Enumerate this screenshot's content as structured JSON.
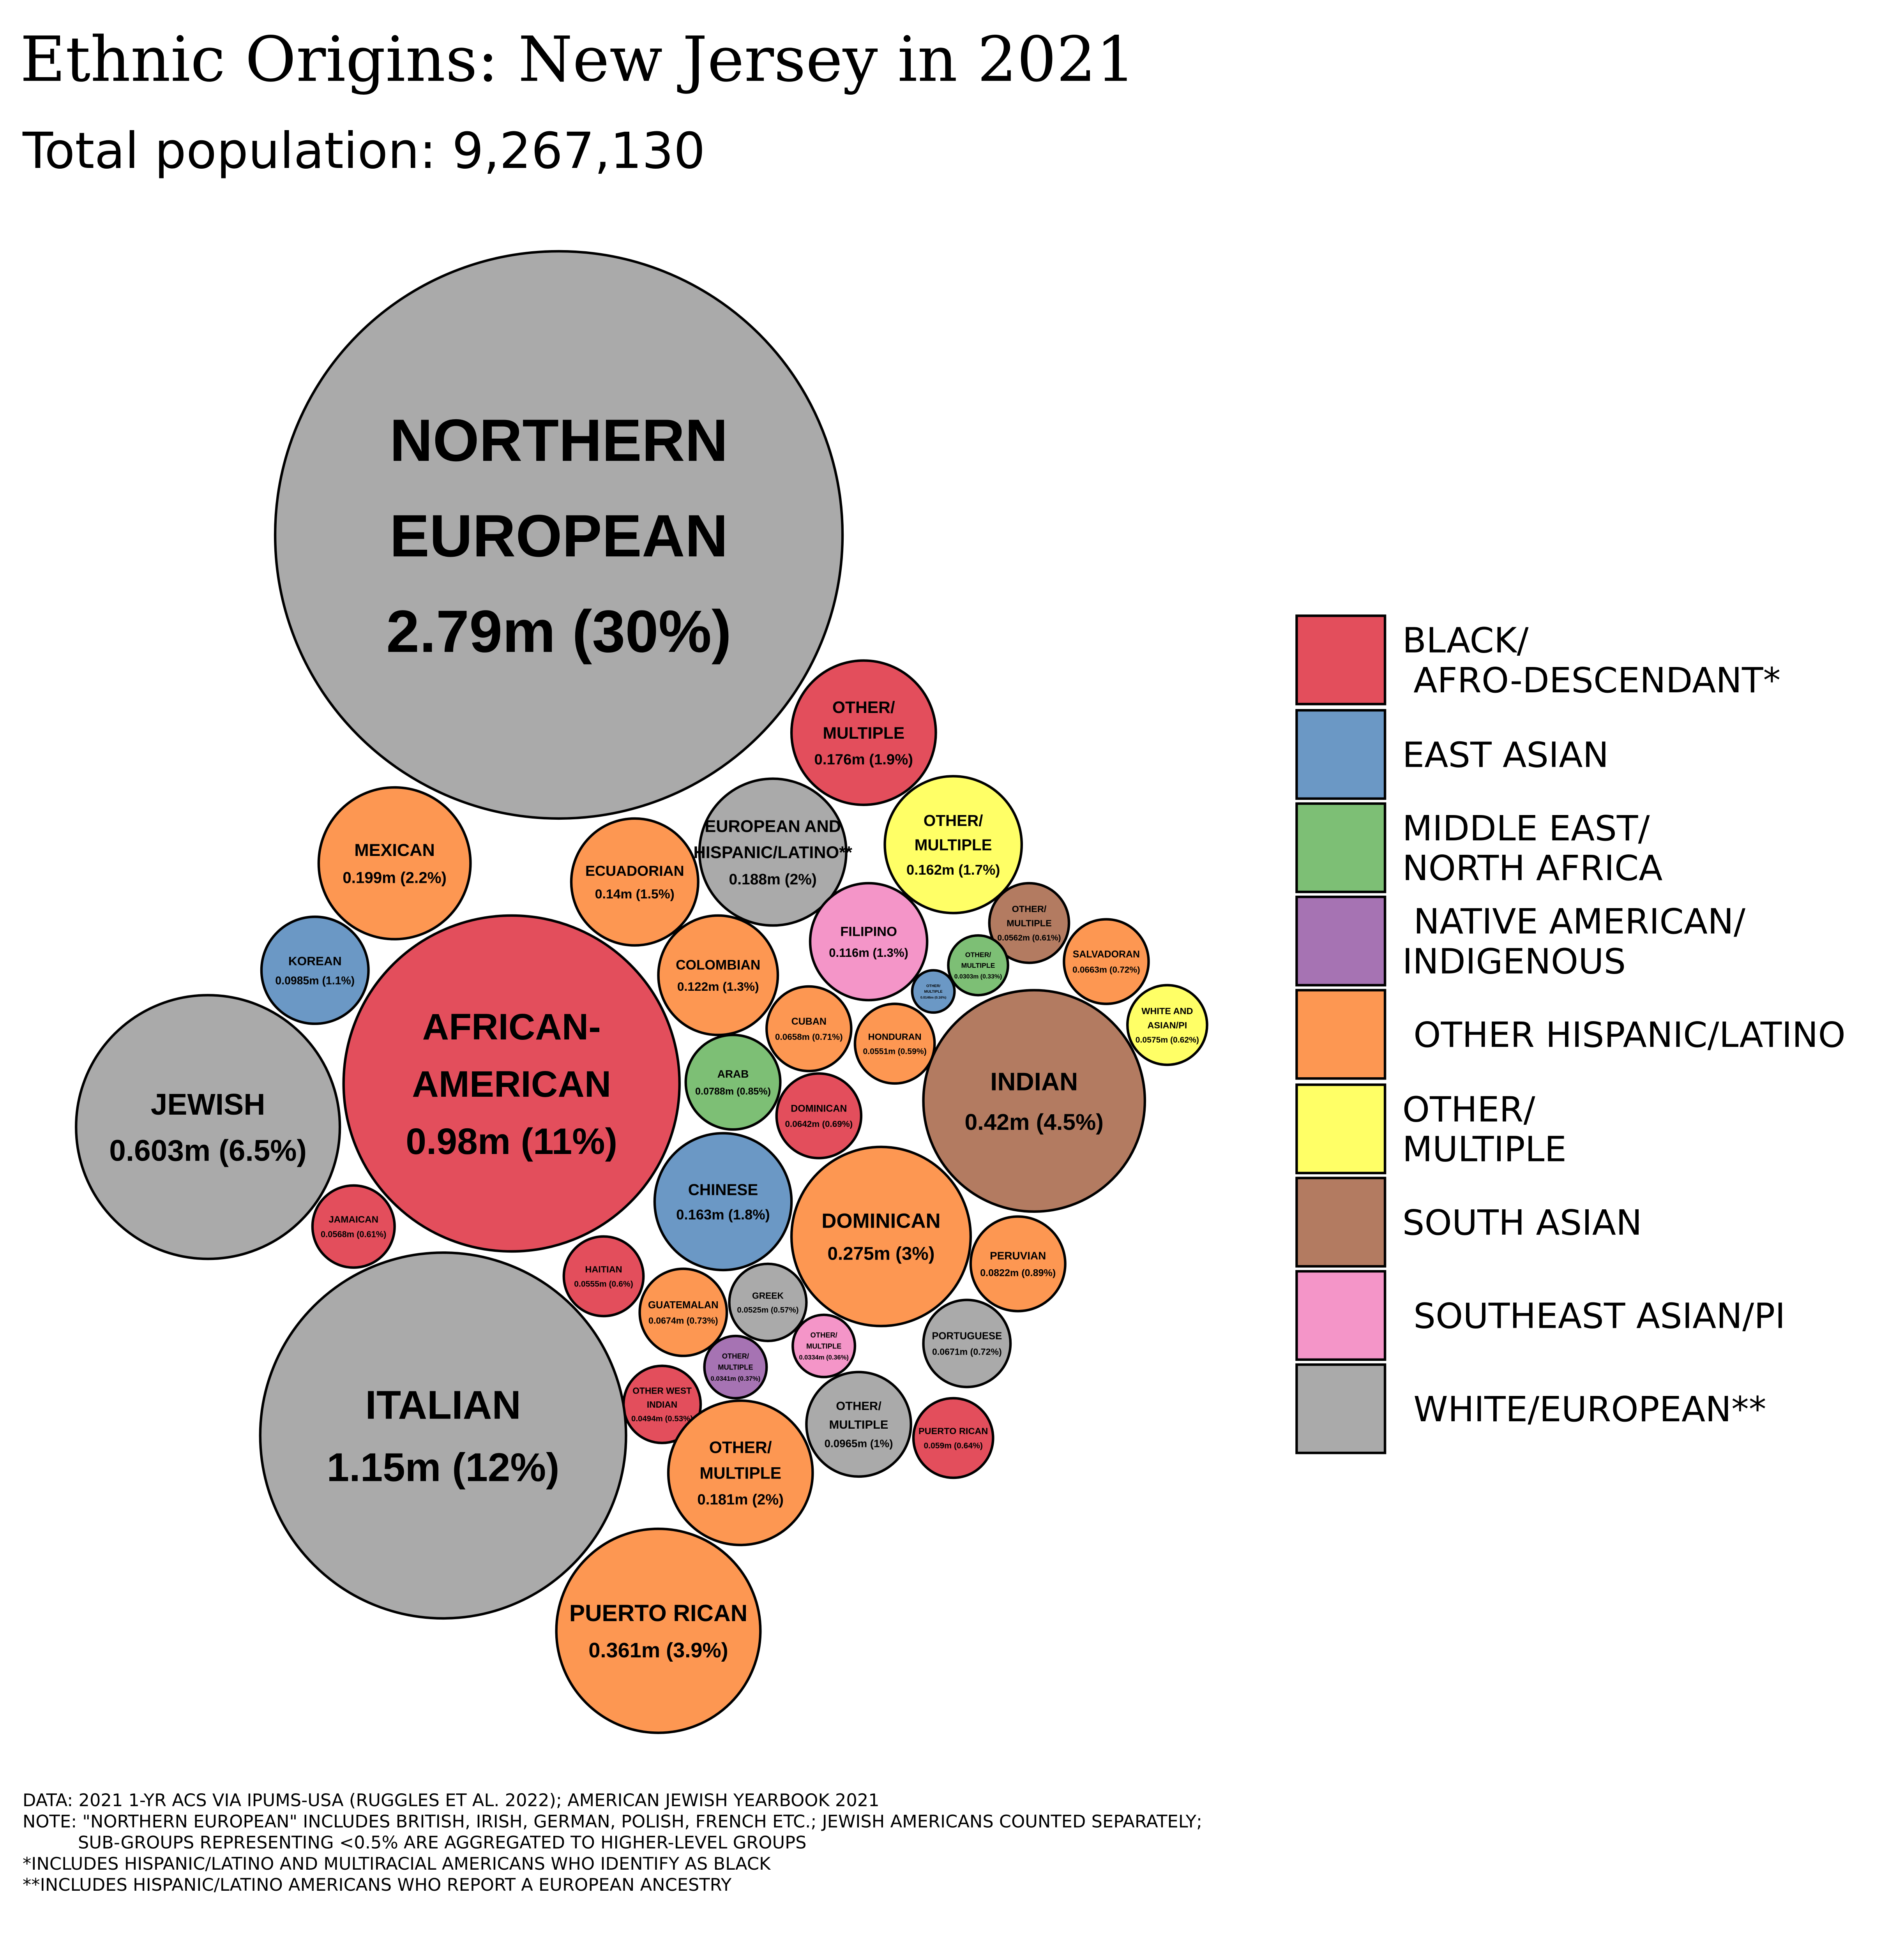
{
  "chart_data": {
    "type": "bubble",
    "title": "Ethnic Origins: New Jersey in 2021",
    "subtitle": "Total population: 9,267,130",
    "groups": [
      {
        "key": "black",
        "label": [
          "BLACK/",
          " AFRO-DESCENDANT*"
        ],
        "color": "#e34e5c"
      },
      {
        "key": "eastasian",
        "label": [
          "EAST ASIAN"
        ],
        "color": "#6b98c5"
      },
      {
        "key": "mena",
        "label": [
          "MIDDLE EAST/",
          "NORTH AFRICA"
        ],
        "color": "#7dbf75"
      },
      {
        "key": "native",
        "label": [
          " NATIVE AMERICAN/",
          "INDIGENOUS"
        ],
        "color": "#a673b3"
      },
      {
        "key": "hispanic",
        "label": [
          " OTHER HISPANIC/LATINO"
        ],
        "color": "#fd9752"
      },
      {
        "key": "other",
        "label": [
          "OTHER/",
          "MULTIPLE"
        ],
        "color": "#ffff66"
      },
      {
        "key": "southasian",
        "label": [
          "SOUTH ASIAN"
        ],
        "color": "#b37b61"
      },
      {
        "key": "sea",
        "label": [
          " SOUTHEAST ASIAN/PI"
        ],
        "color": "#f495c8"
      },
      {
        "key": "white",
        "label": [
          " WHITE/EUROPEAN**"
        ],
        "color": "#aaaaaa"
      }
    ],
    "bubbles": [
      {
        "name": [
          "NORTHERN",
          "EUROPEAN"
        ],
        "value_m": 2.79,
        "value_text": "2.79m (30%)",
        "group": "white"
      },
      {
        "name": [
          "OTHER/",
          "MULTIPLE"
        ],
        "value_m": 0.176,
        "value_text": "0.176m (1.9%)",
        "group": "black"
      },
      {
        "name": [
          "EUROPEAN AND",
          "HISPANIC/LATINO**"
        ],
        "value_m": 0.188,
        "value_text": "0.188m (2%)",
        "group": "white"
      },
      {
        "name": [
          "MEXICAN"
        ],
        "value_m": 0.199,
        "value_text": "0.199m (2.2%)",
        "group": "hispanic"
      },
      {
        "name": [
          "ECUADORIAN"
        ],
        "value_m": 0.14,
        "value_text": "0.14m (1.5%)",
        "group": "hispanic"
      },
      {
        "name": [
          "OTHER/",
          "MULTIPLE"
        ],
        "value_m": 0.162,
        "value_text": "0.162m (1.7%)",
        "group": "other"
      },
      {
        "name": [
          "FILIPINO"
        ],
        "value_m": 0.116,
        "value_text": "0.116m (1.3%)",
        "group": "sea"
      },
      {
        "name": [
          "OTHER/",
          "MULTIPLE"
        ],
        "value_m": 0.0562,
        "value_text": "0.0562m (0.61%)",
        "group": "southasian"
      },
      {
        "name": [
          "KOREAN"
        ],
        "value_m": 0.0985,
        "value_text": "0.0985m (1.1%)",
        "group": "eastasian"
      },
      {
        "name": [
          "COLOMBIAN"
        ],
        "value_m": 0.122,
        "value_text": "0.122m (1.3%)",
        "group": "hispanic"
      },
      {
        "name": [
          "OTHER/",
          "MULTIPLE"
        ],
        "value_m": 0.0146,
        "value_text": "0.0146m (0.16%)",
        "group": "eastasian"
      },
      {
        "name": [
          "OTHER/",
          "MULTIPLE"
        ],
        "value_m": 0.0303,
        "value_text": "0.0303m (0.33%)",
        "group": "mena"
      },
      {
        "name": [
          "SALVADORAN"
        ],
        "value_m": 0.0663,
        "value_text": "0.0663m (0.72%)",
        "group": "hispanic"
      },
      {
        "name": [
          "WHITE AND",
          "ASIAN/PI"
        ],
        "value_m": 0.0575,
        "value_text": "0.0575m (0.62%)",
        "group": "other"
      },
      {
        "name": [
          "AFRICAN-",
          "AMERICAN"
        ],
        "value_m": 0.98,
        "value_text": "0.98m (11%)",
        "group": "black"
      },
      {
        "name": [
          "JEWISH"
        ],
        "value_m": 0.603,
        "value_text": "0.603m (6.5%)",
        "group": "white"
      },
      {
        "name": [
          "CUBAN"
        ],
        "value_m": 0.0658,
        "value_text": "0.0658m (0.71%)",
        "group": "hispanic"
      },
      {
        "name": [
          "HONDURAN"
        ],
        "value_m": 0.0551,
        "value_text": "0.0551m (0.59%)",
        "group": "hispanic"
      },
      {
        "name": [
          "ARAB"
        ],
        "value_m": 0.0788,
        "value_text": "0.0788m (0.85%)",
        "group": "mena"
      },
      {
        "name": [
          "INDIAN"
        ],
        "value_m": 0.42,
        "value_text": "0.42m (4.5%)",
        "group": "southasian"
      },
      {
        "name": [
          "DOMINICAN"
        ],
        "value_m": 0.0642,
        "value_text": "0.0642m (0.69%)",
        "group": "black"
      },
      {
        "name": [
          "CHINESE"
        ],
        "value_m": 0.163,
        "value_text": "0.163m (1.8%)",
        "group": "eastasian"
      },
      {
        "name": [
          "DOMINICAN"
        ],
        "value_m": 0.275,
        "value_text": "0.275m (3%)",
        "group": "hispanic"
      },
      {
        "name": [
          "JAMAICAN"
        ],
        "value_m": 0.0568,
        "value_text": "0.0568m (0.61%)",
        "group": "black"
      },
      {
        "name": [
          "PERUVIAN"
        ],
        "value_m": 0.0822,
        "value_text": "0.0822m (0.89%)",
        "group": "hispanic"
      },
      {
        "name": [
          "HAITIAN"
        ],
        "value_m": 0.0555,
        "value_text": "0.0555m (0.6%)",
        "group": "black"
      },
      {
        "name": [
          "GUATEMALAN"
        ],
        "value_m": 0.0674,
        "value_text": "0.0674m (0.73%)",
        "group": "hispanic"
      },
      {
        "name": [
          "GREEK"
        ],
        "value_m": 0.0525,
        "value_text": "0.0525m (0.57%)",
        "group": "white"
      },
      {
        "name": [
          "PORTUGUESE"
        ],
        "value_m": 0.0671,
        "value_text": "0.0671m (0.72%)",
        "group": "white"
      },
      {
        "name": [
          "OTHER/",
          "MULTIPLE"
        ],
        "value_m": 0.0334,
        "value_text": "0.0334m (0.36%)",
        "group": "sea"
      },
      {
        "name": [
          "OTHER/",
          "MULTIPLE"
        ],
        "value_m": 0.0341,
        "value_text": "0.0341m (0.37%)",
        "group": "native"
      },
      {
        "name": [
          "OTHER WEST",
          "INDIAN"
        ],
        "value_m": 0.0494,
        "value_text": "0.0494m (0.53%)",
        "group": "black"
      },
      {
        "name": [
          "ITALIAN"
        ],
        "value_m": 1.15,
        "value_text": "1.15m (12%)",
        "group": "white"
      },
      {
        "name": [
          "OTHER/",
          "MULTIPLE"
        ],
        "value_m": 0.0965,
        "value_text": "0.0965m (1%)",
        "group": "white"
      },
      {
        "name": [
          "PUERTO RICAN"
        ],
        "value_m": 0.059,
        "value_text": "0.059m (0.64%)",
        "group": "black"
      },
      {
        "name": [
          "OTHER/",
          "MULTIPLE"
        ],
        "value_m": 0.181,
        "value_text": "0.181m (2%)",
        "group": "hispanic"
      },
      {
        "name": [
          "PUERTO RICAN"
        ],
        "value_m": 0.361,
        "value_text": "0.361m (3.9%)",
        "group": "hispanic"
      }
    ],
    "footnotes": [
      "DATA: 2021 1-YR ACS VIA IPUMS-USA (RUGGLES ET AL. 2022); AMERICAN JEWISH YEARBOOK 2021",
      "NOTE: \"NORTHERN EUROPEAN\" INCLUDES BRITISH, IRISH, GERMAN, POLISH, FRENCH ETC.; JEWISH AMERICANS COUNTED SEPARATELY;",
      "          SUB-GROUPS REPRESENTING <0.5% ARE AGGREGATED TO HIGHER-LEVEL GROUPS",
      "*INCLUDES HISPANIC/LATINO AND MULTIRACIAL AMERICANS WHO IDENTIFY AS BLACK",
      "**INCLUDES HISPANIC/LATINO AMERICANS WHO REPORT A EUROPEAN ANCESTRY"
    ],
    "legend_position": "right"
  }
}
